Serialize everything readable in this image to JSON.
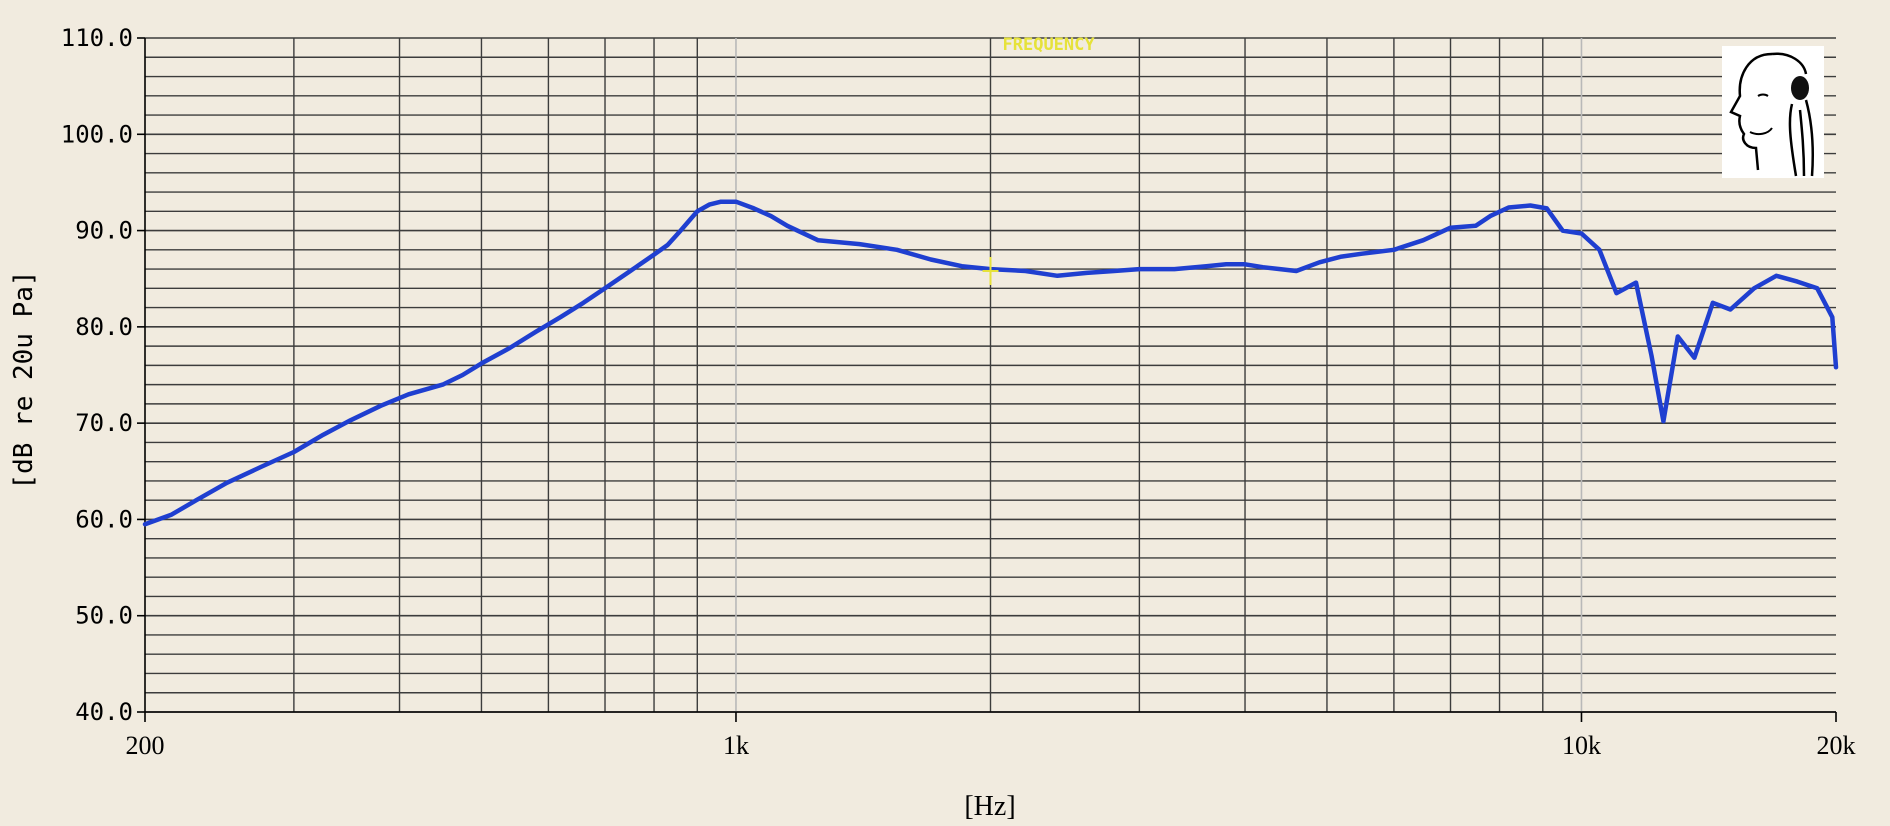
{
  "chart_data": {
    "type": "line",
    "title": "",
    "xlabel": "[Hz]",
    "ylabel": "[dB re 20u Pa]",
    "x_scale": "log",
    "xlim": [
      200,
      20000
    ],
    "ylim": [
      40,
      110
    ],
    "y_ticks": [
      {
        "value": 110,
        "label": "110.0"
      },
      {
        "value": 100,
        "label": "100.0"
      },
      {
        "value": 90,
        "label": "90.0"
      },
      {
        "value": 80,
        "label": "80.0"
      },
      {
        "value": 70,
        "label": "70.0"
      },
      {
        "value": 60,
        "label": "60.0"
      },
      {
        "value": 50,
        "label": "50.0"
      },
      {
        "value": 40,
        "label": "40.0"
      }
    ],
    "x_ticks": [
      {
        "value": 200,
        "label": "200"
      },
      {
        "value": 1000,
        "label": "1k"
      },
      {
        "value": 10000,
        "label": "10k"
      },
      {
        "value": 20000,
        "label": "20k"
      }
    ],
    "grid": true,
    "grid_y_step": 2,
    "grid_x_values": [
      300,
      400,
      500,
      600,
      700,
      800,
      900,
      2000,
      3000,
      4000,
      5000,
      6000,
      7000,
      8000,
      9000
    ],
    "line_color": "#1f3fd0",
    "grid_color": "#3c3c3c",
    "background_color": "#f1ebdf",
    "marker": {
      "x": 2000,
      "y": 85.8,
      "label": "FREQUENCY",
      "color": "#e6e23a"
    },
    "icon": "listening-head-icon",
    "series": [
      {
        "name": "",
        "points": [
          [
            200,
            59.5
          ],
          [
            215,
            60.5
          ],
          [
            230,
            62
          ],
          [
            250,
            63.8
          ],
          [
            275,
            65.5
          ],
          [
            300,
            67
          ],
          [
            325,
            68.8
          ],
          [
            350,
            70.3
          ],
          [
            380,
            71.8
          ],
          [
            410,
            73
          ],
          [
            450,
            74
          ],
          [
            475,
            75
          ],
          [
            500,
            76.2
          ],
          [
            540,
            77.8
          ],
          [
            580,
            79.5
          ],
          [
            620,
            81
          ],
          [
            660,
            82.5
          ],
          [
            700,
            84
          ],
          [
            750,
            85.8
          ],
          [
            800,
            87.5
          ],
          [
            830,
            88.5
          ],
          [
            860,
            90
          ],
          [
            880,
            91
          ],
          [
            900,
            92
          ],
          [
            930,
            92.7
          ],
          [
            960,
            93
          ],
          [
            1000,
            93
          ],
          [
            1050,
            92.3
          ],
          [
            1100,
            91.5
          ],
          [
            1150,
            90.5
          ],
          [
            1250,
            89
          ],
          [
            1400,
            88.6
          ],
          [
            1550,
            88
          ],
          [
            1700,
            87
          ],
          [
            1850,
            86.3
          ],
          [
            2000,
            86
          ],
          [
            2200,
            85.8
          ],
          [
            2400,
            85.3
          ],
          [
            2600,
            85.6
          ],
          [
            2800,
            85.8
          ],
          [
            3000,
            86
          ],
          [
            3300,
            86
          ],
          [
            3600,
            86.3
          ],
          [
            3800,
            86.5
          ],
          [
            4000,
            86.5
          ],
          [
            4200,
            86.2
          ],
          [
            4400,
            86
          ],
          [
            4600,
            85.8
          ],
          [
            4900,
            86.7
          ],
          [
            5200,
            87.3
          ],
          [
            5500,
            87.6
          ],
          [
            6000,
            88
          ],
          [
            6500,
            89
          ],
          [
            7000,
            90.3
          ],
          [
            7500,
            90.5
          ],
          [
            7800,
            91.5
          ],
          [
            8200,
            92.4
          ],
          [
            8700,
            92.6
          ],
          [
            9100,
            92.3
          ],
          [
            9500,
            90
          ],
          [
            10000,
            89.7
          ],
          [
            10500,
            88
          ],
          [
            11000,
            83.5
          ],
          [
            11600,
            84.6
          ],
          [
            12100,
            77
          ],
          [
            12500,
            70.2
          ],
          [
            13000,
            79
          ],
          [
            13600,
            76.8
          ],
          [
            14300,
            82.5
          ],
          [
            15000,
            81.8
          ],
          [
            16000,
            84
          ],
          [
            17000,
            85.3
          ],
          [
            18000,
            84.7
          ],
          [
            19000,
            84
          ],
          [
            19800,
            81
          ],
          [
            20000,
            75.8
          ]
        ]
      }
    ]
  }
}
